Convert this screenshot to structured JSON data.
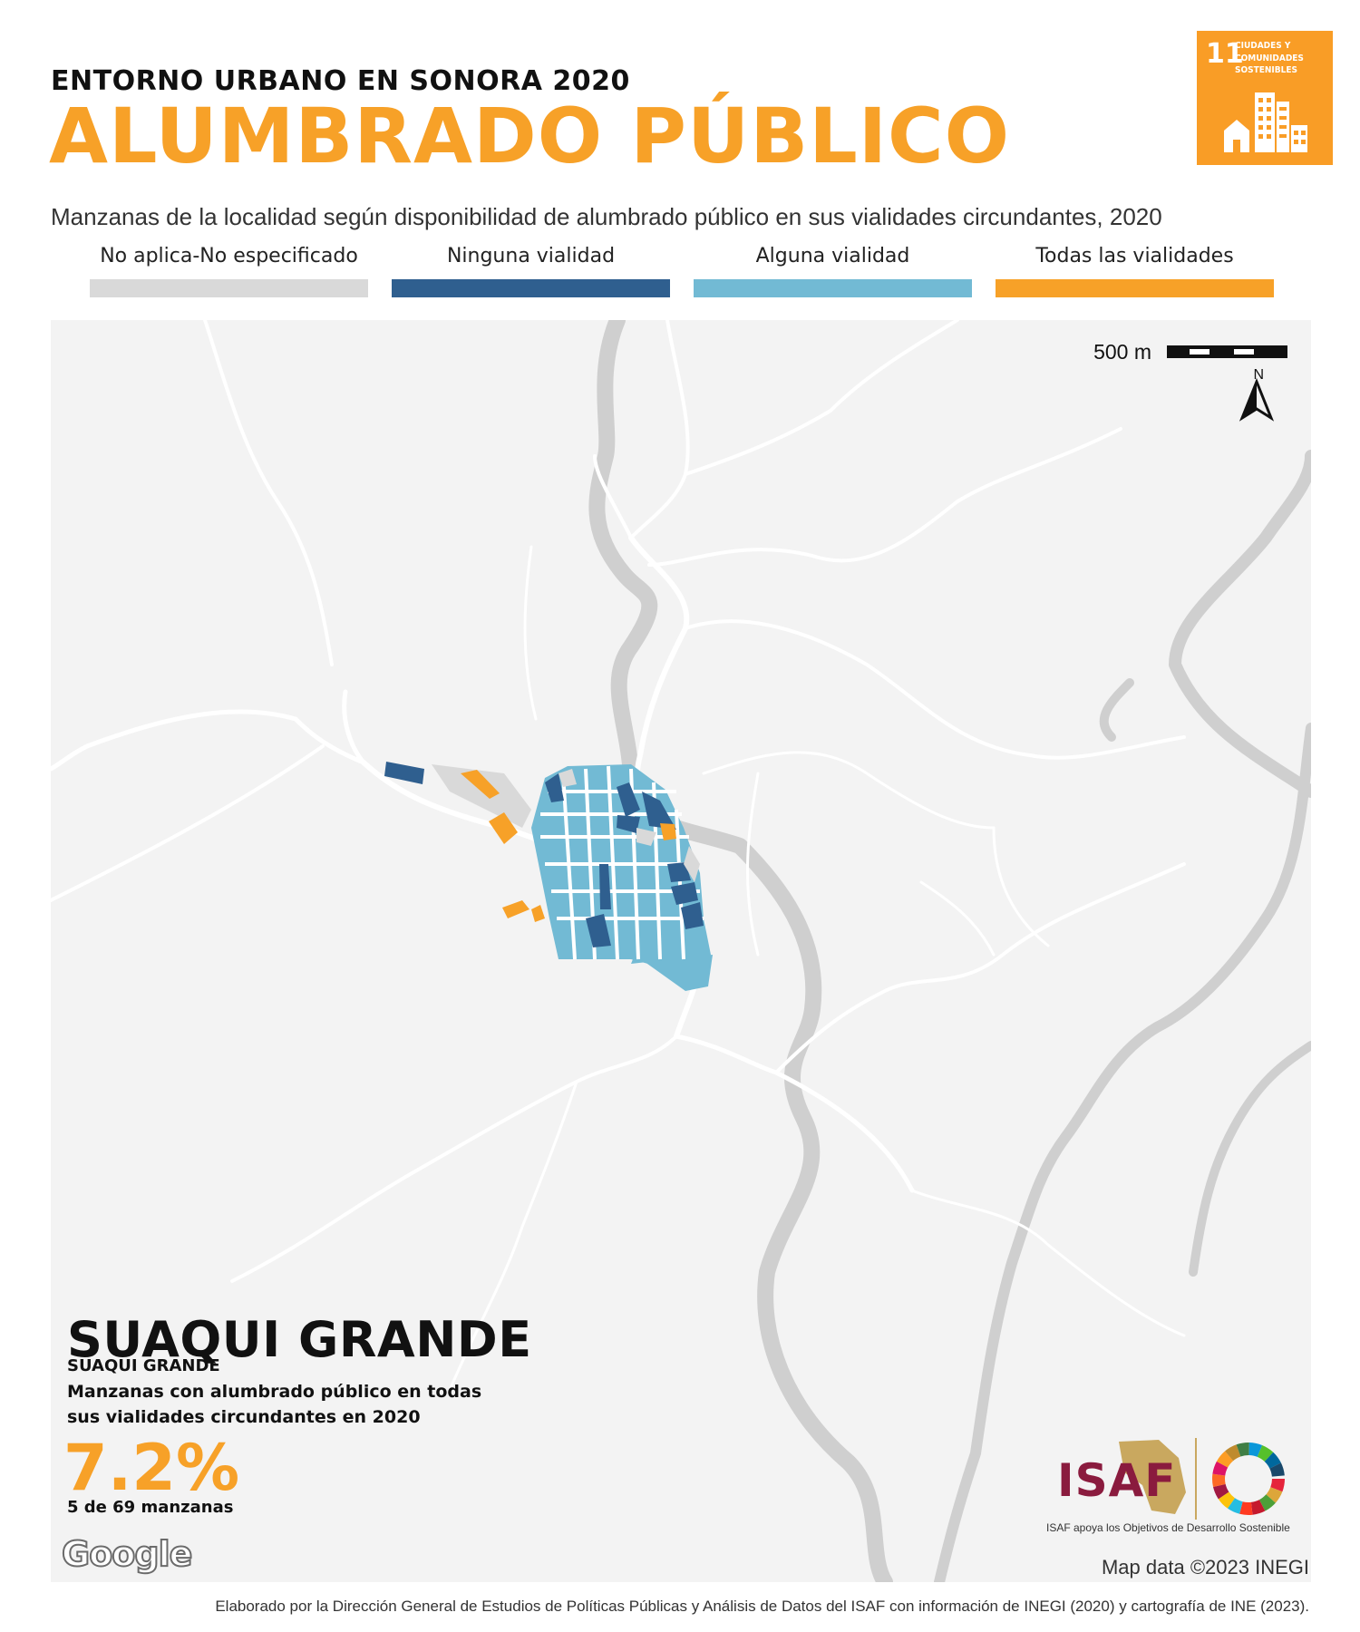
{
  "header": {
    "kicker": "ENTORNO URBANO EN SONORA 2020",
    "title": "ALUMBRADO PÚBLICO",
    "sdg_badge": {
      "number": "11",
      "text": "CIUDADES Y COMUNIDADES SOSTENIBLES",
      "color": "#f99d26"
    }
  },
  "subtitle": "Manzanas de la localidad según disponibilidad de alumbrado público en sus vialidades circundantes, 2020",
  "legend": [
    {
      "label": "No aplica-No especificado",
      "color": "#d9d9d9"
    },
    {
      "label": "Ninguna vialidad",
      "color": "#2f5f8f"
    },
    {
      "label": "Alguna vialidad",
      "color": "#72bad4"
    },
    {
      "label": "Todas las vialidades",
      "color": "#f7a128"
    }
  ],
  "map": {
    "scale_label": "500 m",
    "north_label": "N",
    "attribution": "Map data ©2023 INEGI",
    "provider_logo": "Google"
  },
  "locality": {
    "name": "SUAQUI GRANDE",
    "municipality": "SUAQUI GRANDE",
    "stat_description": "Manzanas con alumbrado público en todas sus vialidades circundantes en 2020",
    "stat_value": "7.2%",
    "stat_count": "5 de 69 manzanas"
  },
  "logos": {
    "isaf": "ISAF",
    "isaf_caption": "ISAF apoya los Objetivos de Desarrollo Sostenible"
  },
  "footer": "Elaborado por la Dirección General de Estudios de Políticas Públicas y Análisis de Datos del ISAF con información de INEGI (2020) y cartografía de INE (2023)."
}
